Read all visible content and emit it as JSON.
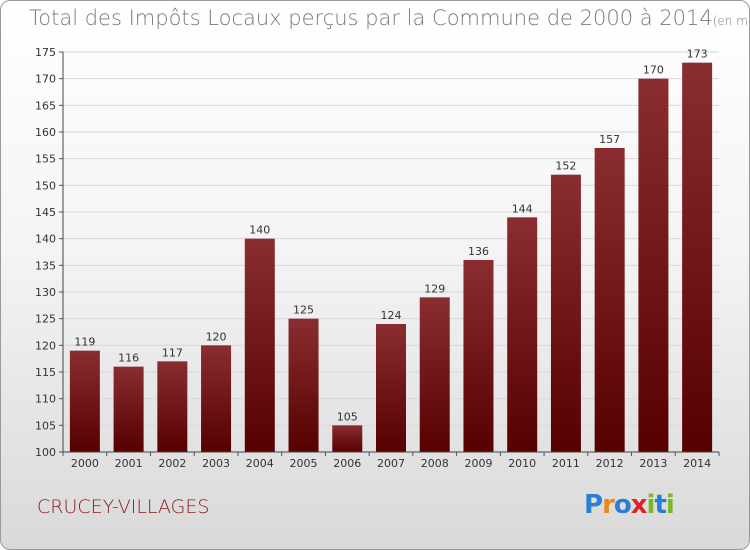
{
  "title": "Total des Impôts Locaux perçus par la Commune de 2000 à 2014",
  "title_unit": "(en milliers d'€)",
  "commune": "CRUCEY-VILLAGES",
  "logo": {
    "text": "Proxiti",
    "letters": [
      "P",
      "r",
      "o",
      "x",
      "i",
      "t",
      "i"
    ],
    "colors": [
      "#2a7fd4",
      "#e8891a",
      "#2a7fd4",
      "#d9252a",
      "#7ab828",
      "#2a7fd4",
      "#7ab828"
    ]
  },
  "bar_color": "#7a1518",
  "chart_data": {
    "type": "bar",
    "categories": [
      "2000",
      "2001",
      "2002",
      "2003",
      "2004",
      "2005",
      "2006",
      "2007",
      "2008",
      "2009",
      "2010",
      "2011",
      "2012",
      "2013",
      "2014"
    ],
    "values": [
      119,
      116,
      117,
      120,
      140,
      125,
      105,
      124,
      129,
      136,
      144,
      152,
      157,
      170,
      173
    ],
    "ylim": [
      100,
      175
    ],
    "yticks": [
      100,
      105,
      110,
      115,
      120,
      125,
      130,
      135,
      140,
      145,
      150,
      155,
      160,
      165,
      170,
      175
    ],
    "grid": true
  }
}
